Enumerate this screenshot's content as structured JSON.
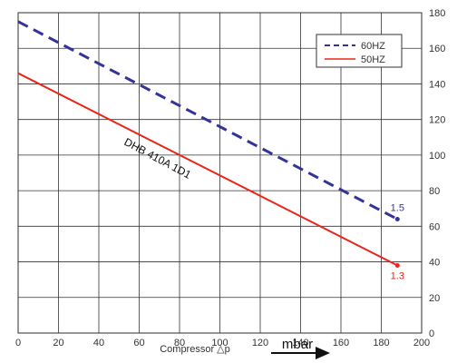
{
  "chart_data": {
    "type": "line",
    "title": "",
    "xlabel": "Compressor △p",
    "xunit": "mbar",
    "ylabel": "",
    "xlim": [
      0,
      200
    ],
    "ylim": [
      0,
      180
    ],
    "xticks": [
      0,
      20,
      40,
      60,
      80,
      100,
      120,
      140,
      160,
      180,
      200
    ],
    "yticks": [
      0,
      20,
      40,
      60,
      80,
      100,
      120,
      140,
      160,
      180
    ],
    "grid": true,
    "legend_position": "top-right",
    "model_label": "DHB 410A 1D1",
    "series": [
      {
        "name": "60HZ",
        "style": "dashed",
        "color": "#333399",
        "x": [
          0,
          188
        ],
        "y": [
          175,
          64
        ],
        "end_label": "1.5"
      },
      {
        "name": "50HZ",
        "style": "solid",
        "color": "#e8261c",
        "x": [
          0,
          188
        ],
        "y": [
          146,
          38
        ],
        "end_label": "1.3"
      }
    ]
  }
}
